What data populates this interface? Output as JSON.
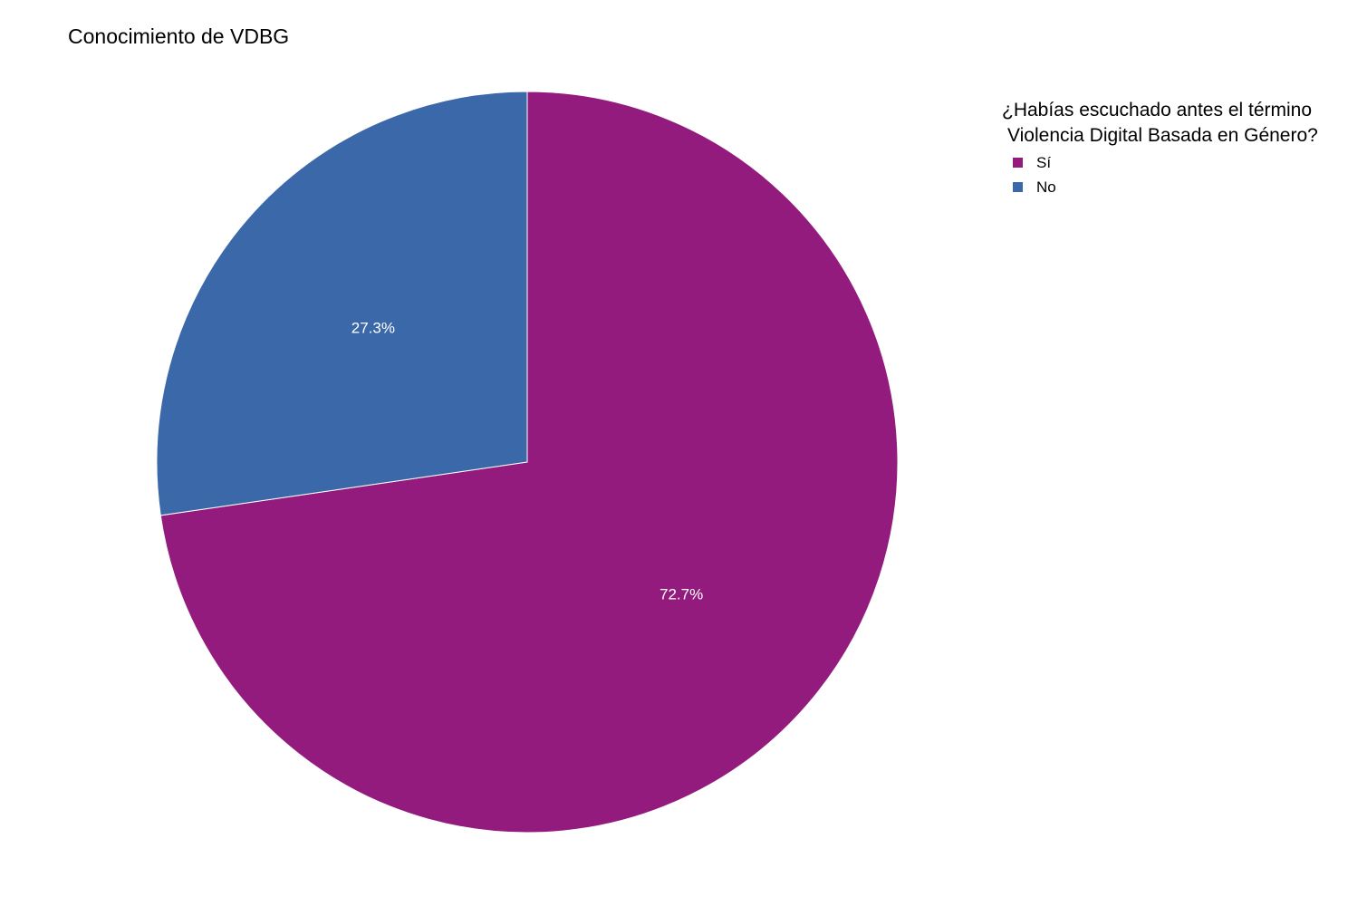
{
  "title": "Conocimiento de VDBG",
  "chart_data": {
    "type": "pie",
    "title": "Conocimiento de VDBG",
    "legend_title_line1": "¿Habías escuchado antes el término",
    "legend_title_line2": "Violencia Digital Basada en Género?",
    "legend_position": "right",
    "start": "top",
    "direction": "clockwise",
    "slices": [
      {
        "label": "Sí",
        "value": 72.7,
        "value_label": "72.7%",
        "color": "#941b7e"
      },
      {
        "label": "No",
        "value": 27.3,
        "value_label": "27.3%",
        "color": "#3a68a9"
      }
    ]
  }
}
